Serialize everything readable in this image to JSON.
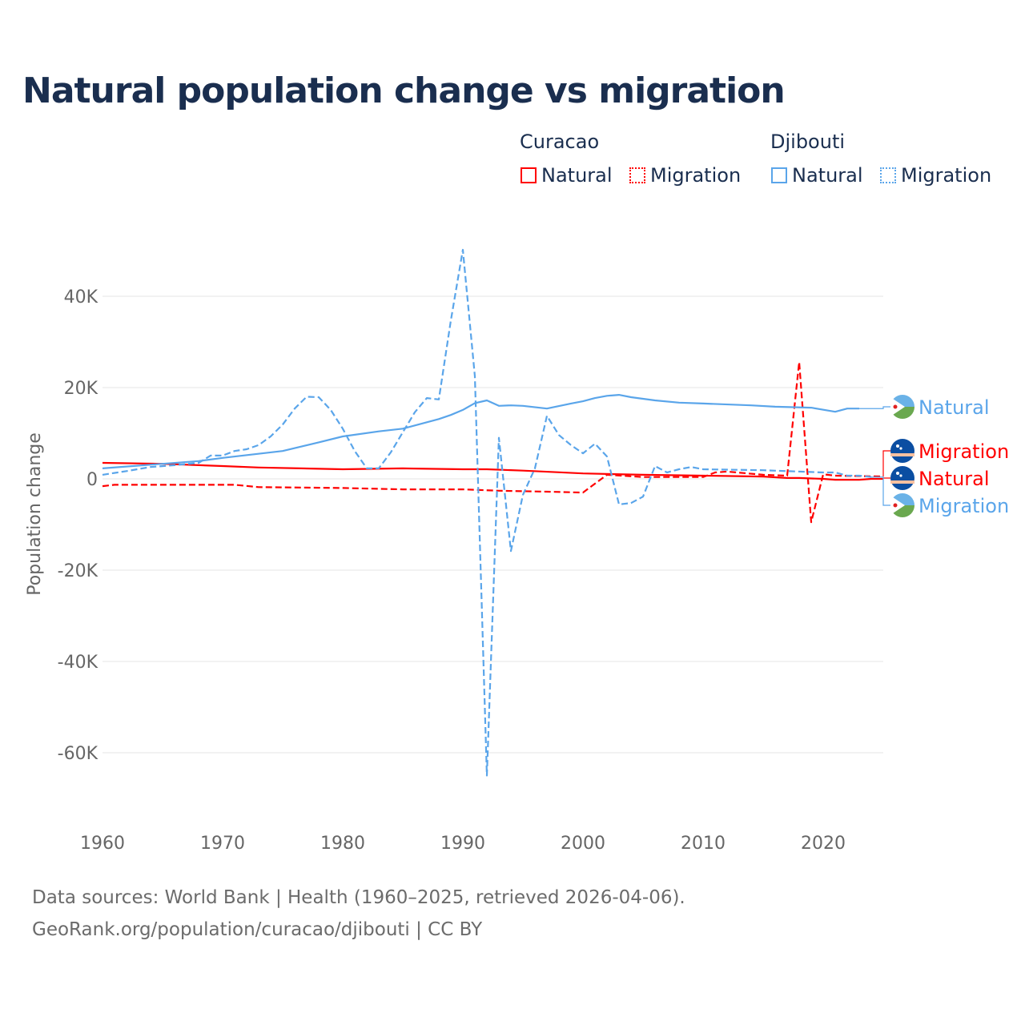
{
  "chart_data": {
    "type": "line",
    "title": "Natural population change vs migration",
    "xlabel": "",
    "ylabel": "Population change",
    "xlim": [
      1960,
      2025
    ],
    "ylim": [
      -70000,
      55000
    ],
    "yticks": [
      40000,
      20000,
      0,
      -20000,
      -40000,
      -60000
    ],
    "ytick_labels": [
      "40K",
      "20K",
      "0",
      "-20K",
      "-40K",
      "-60K"
    ],
    "xticks": [
      1960,
      1970,
      1980,
      1990,
      2000,
      2010,
      2020
    ],
    "xtick_labels": [
      "1960",
      "1970",
      "1980",
      "1990",
      "2000",
      "2010",
      "2020"
    ],
    "grid": true,
    "legend": {
      "placement": "top-right",
      "groups": [
        {
          "name": "Curacao",
          "items": [
            "Natural",
            "Migration"
          ]
        },
        {
          "name": "Djibouti",
          "items": [
            "Natural",
            "Migration"
          ]
        }
      ]
    },
    "series": [
      {
        "country": "Curacao",
        "name": "Natural",
        "color": "#ff0000",
        "style": "solid",
        "end_label": "Natural",
        "x": [
          1960,
          1965,
          1970,
          1973,
          1980,
          1985,
          1990,
          1992,
          1995,
          2000,
          2005,
          2010,
          2015,
          2017,
          2018,
          2020,
          2021,
          2023,
          2024,
          2025
        ],
        "y": [
          3500,
          3300,
          2800,
          2500,
          2100,
          2300,
          2100,
          2100,
          1800,
          1200,
          900,
          700,
          500,
          200,
          200,
          0,
          -200,
          -200,
          0,
          0
        ]
      },
      {
        "country": "Curacao",
        "name": "Migration",
        "color": "#ff0000",
        "style": "dashed",
        "end_label": "Migration",
        "x": [
          1960,
          1961,
          1967,
          1971,
          1973,
          1980,
          1985,
          1990,
          1993,
          1997,
          2000,
          2002,
          2005,
          2010,
          2011,
          2012,
          2015,
          2017,
          2018,
          2019,
          2020,
          2021,
          2025
        ],
        "y": [
          -1600,
          -1300,
          -1300,
          -1300,
          -1800,
          -2000,
          -2300,
          -2300,
          -2600,
          -2800,
          -3000,
          900,
          400,
          400,
          1400,
          1600,
          900,
          700,
          25600,
          -9500,
          1000,
          700,
          500
        ]
      },
      {
        "country": "Djibouti",
        "name": "Natural",
        "color": "#5aa5ea",
        "style": "solid",
        "end_label": "Natural",
        "x": [
          1960,
          1965,
          1968,
          1970,
          1975,
          1978,
          1980,
          1983,
          1985,
          1988,
          1989,
          1990,
          1991,
          1992,
          1993,
          1994,
          1995,
          1997,
          1999,
          2000,
          2001,
          2002,
          2003,
          2004,
          2006,
          2008,
          2010,
          2014,
          2016,
          2019,
          2021,
          2022,
          2023
        ],
        "y": [
          2300,
          3300,
          3900,
          4600,
          6100,
          8000,
          9300,
          10400,
          11000,
          13100,
          14000,
          15100,
          16600,
          17200,
          16000,
          16100,
          16000,
          15400,
          16500,
          17000,
          17700,
          18200,
          18400,
          17900,
          17200,
          16700,
          16500,
          16100,
          15800,
          15600,
          14700,
          15400,
          15400
        ]
      },
      {
        "country": "Djibouti",
        "name": "Migration",
        "color": "#5aa5ea",
        "style": "dashed",
        "end_label": "Migration",
        "x": [
          1960,
          1962,
          1964,
          1966,
          1968,
          1969,
          1970,
          1971,
          1972,
          1973,
          1974,
          1975,
          1976,
          1977,
          1978,
          1979,
          1980,
          1981,
          1982,
          1983,
          1984,
          1985,
          1986,
          1987,
          1988,
          1989,
          1990,
          1991,
          1992,
          1993,
          1994,
          1995,
          1996,
          1997,
          1998,
          1999,
          2000,
          2001,
          2002,
          2003,
          2004,
          2005,
          2006,
          2007,
          2008,
          2009,
          2010,
          2015,
          2020,
          2021,
          2022,
          2023,
          2024
        ],
        "y": [
          900,
          1700,
          2600,
          3000,
          3500,
          5100,
          5100,
          6100,
          6500,
          7400,
          9300,
          11900,
          15400,
          18000,
          17900,
          15100,
          11000,
          6100,
          2300,
          2300,
          5800,
          10200,
          14600,
          17700,
          17400,
          34700,
          50200,
          22500,
          -65000,
          9000,
          -15800,
          -3500,
          2300,
          13800,
          9600,
          7400,
          5600,
          7700,
          4900,
          -5600,
          -5300,
          -3900,
          2800,
          1400,
          2100,
          2600,
          2100,
          1900,
          1400,
          1400,
          700,
          700,
          400
        ]
      }
    ]
  },
  "footer": {
    "line1": "Data sources: World Bank | Health (1960–2025, retrieved 2026-04-06).",
    "line2": "GeoRank.org/population/curacao/djibouti | CC BY"
  }
}
